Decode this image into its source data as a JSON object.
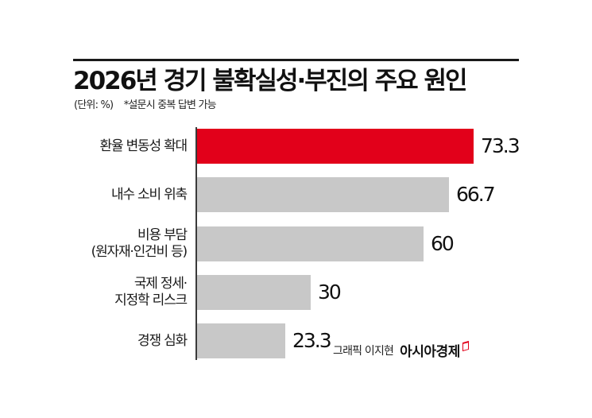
{
  "header": {
    "title": "2026년 경기 불확실성·부진의 주요 원인",
    "unit": "(단위: %)",
    "note": "*설문시 중복 답변 가능"
  },
  "colors": {
    "highlight": "#e2001a",
    "bar": "#c8c8c8",
    "axis": "#3a3a3a",
    "text": "#111111"
  },
  "bars": [
    {
      "label_lines": [
        "환율 변동성 확대"
      ],
      "value": 73.3,
      "value_label": "73.3",
      "highlight": true
    },
    {
      "label_lines": [
        "내수 소비 위축"
      ],
      "value": 66.7,
      "value_label": "66.7",
      "highlight": false
    },
    {
      "label_lines": [
        "비용 부담",
        "(원자재·인건비 등)"
      ],
      "value": 60,
      "value_label": "60",
      "highlight": false
    },
    {
      "label_lines": [
        "국제 정세·",
        "지정학 리스크"
      ],
      "value": 30,
      "value_label": "30",
      "highlight": false
    },
    {
      "label_lines": [
        "경쟁 심화"
      ],
      "value": 23.3,
      "value_label": "23.3",
      "highlight": false
    }
  ],
  "credit": {
    "author": "그래픽 이지현",
    "brand": "아시아경제"
  },
  "chart_data": {
    "type": "bar",
    "orientation": "horizontal",
    "title": "2026년 경기 불확실성·부진의 주요 원인",
    "subtitle": "(단위: %) *설문시 중복 답변 가능",
    "categories": [
      "환율 변동성 확대",
      "내수 소비 위축",
      "비용 부담 (원자재·인건비 등)",
      "국제 정세·지정학 리스크",
      "경쟁 심화"
    ],
    "values": [
      73.3,
      66.7,
      60,
      30,
      23.3
    ],
    "xlabel": "",
    "ylabel": "",
    "unit": "%",
    "xlim": [
      0,
      80
    ],
    "grid": false,
    "legend": null,
    "data_labels": true,
    "highlighted_category": "환율 변동성 확대",
    "annotations": [
      "그래픽 이지현",
      "아시아경제"
    ]
  }
}
